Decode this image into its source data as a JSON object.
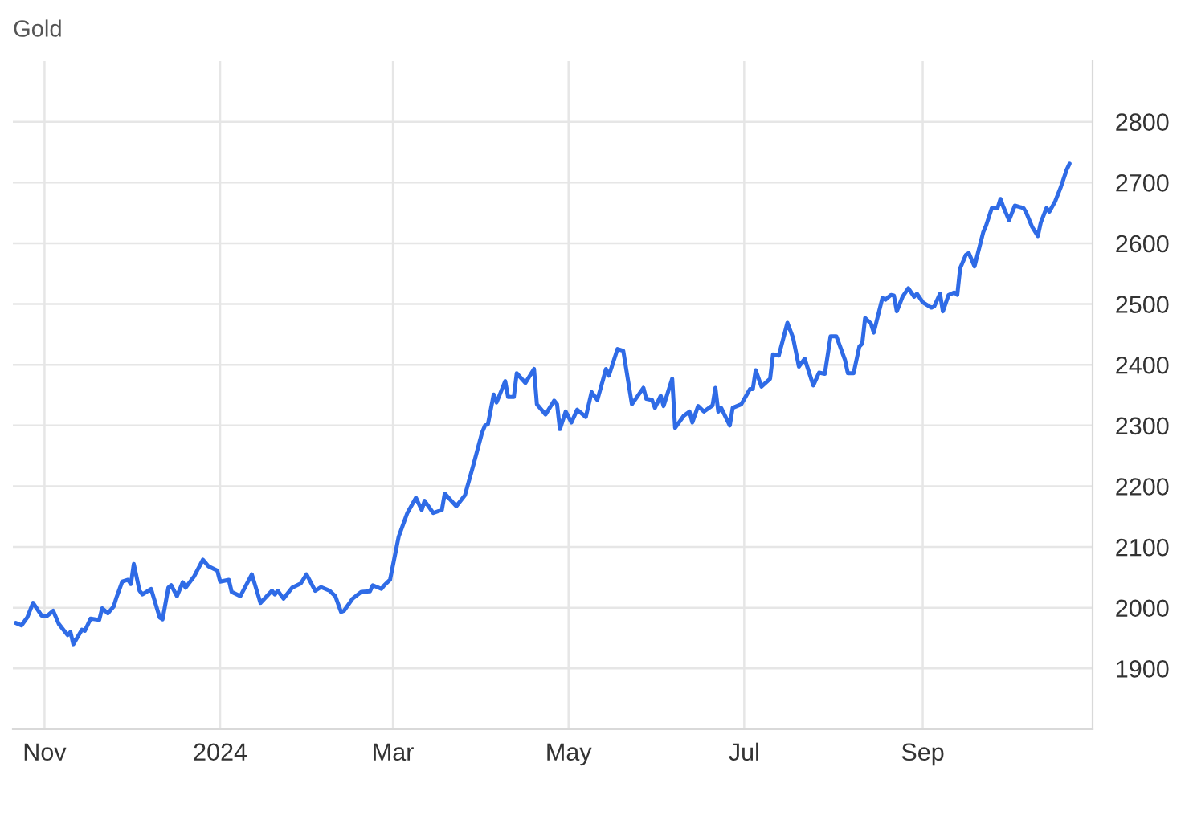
{
  "chart_data": {
    "type": "line",
    "title": "Gold",
    "x": [
      "2023-10-22",
      "2023-10-24",
      "2023-10-26",
      "2023-10-28",
      "2023-10-31",
      "2023-11-02",
      "2023-11-04",
      "2023-11-06",
      "2023-11-09",
      "2023-11-10",
      "2023-11-11",
      "2023-11-14",
      "2023-11-15",
      "2023-11-17",
      "2023-11-20",
      "2023-11-21",
      "2023-11-23",
      "2023-11-25",
      "2023-11-26",
      "2023-11-28",
      "2023-11-30",
      "2023-12-01",
      "2023-12-02",
      "2023-12-04",
      "2023-12-05",
      "2023-12-08",
      "2023-12-11",
      "2023-12-12",
      "2023-12-14",
      "2023-12-15",
      "2023-12-17",
      "2023-12-19",
      "2023-12-20",
      "2023-12-23",
      "2023-12-26",
      "2023-12-28",
      "2023-12-31",
      "2024-01-01",
      "2024-01-04",
      "2024-01-05",
      "2024-01-08",
      "2024-01-12",
      "2024-01-15",
      "2024-01-19",
      "2024-01-20",
      "2024-01-21",
      "2024-01-23",
      "2024-01-26",
      "2024-01-29",
      "2024-01-31",
      "2024-02-03",
      "2024-02-05",
      "2024-02-08",
      "2024-02-10",
      "2024-02-12",
      "2024-02-13",
      "2024-02-16",
      "2024-02-19",
      "2024-02-22",
      "2024-02-23",
      "2024-02-26",
      "2024-02-27",
      "2024-02-29",
      "2024-03-03",
      "2024-03-04",
      "2024-03-06",
      "2024-03-09",
      "2024-03-11",
      "2024-03-12",
      "2024-03-15",
      "2024-03-18",
      "2024-03-19",
      "2024-03-23",
      "2024-03-26",
      "2024-03-29",
      "2024-04-01",
      "2024-04-02",
      "2024-04-03",
      "2024-04-05",
      "2024-04-06",
      "2024-04-09",
      "2024-04-10",
      "2024-04-12",
      "2024-04-13",
      "2024-04-16",
      "2024-04-19",
      "2024-04-20",
      "2024-04-23",
      "2024-04-26",
      "2024-04-27",
      "2024-04-28",
      "2024-04-30",
      "2024-05-02",
      "2024-05-04",
      "2024-05-07",
      "2024-05-09",
      "2024-05-11",
      "2024-05-14",
      "2024-05-15",
      "2024-05-18",
      "2024-05-20",
      "2024-05-23",
      "2024-05-27",
      "2024-05-28",
      "2024-05-30",
      "2024-05-31",
      "2024-06-02",
      "2024-06-03",
      "2024-06-06",
      "2024-06-07",
      "2024-06-10",
      "2024-06-12",
      "2024-06-13",
      "2024-06-15",
      "2024-06-17",
      "2024-06-20",
      "2024-06-21",
      "2024-06-22",
      "2024-06-23",
      "2024-06-26",
      "2024-06-27",
      "2024-06-30",
      "2024-07-03",
      "2024-07-04",
      "2024-07-05",
      "2024-07-07",
      "2024-07-10",
      "2024-07-11",
      "2024-07-13",
      "2024-07-16",
      "2024-07-18",
      "2024-07-20",
      "2024-07-22",
      "2024-07-25",
      "2024-07-27",
      "2024-07-29",
      "2024-07-31",
      "2024-08-02",
      "2024-08-05",
      "2024-08-06",
      "2024-08-08",
      "2024-08-10",
      "2024-08-11",
      "2024-08-12",
      "2024-08-14",
      "2024-08-15",
      "2024-08-18",
      "2024-08-19",
      "2024-08-21",
      "2024-08-22",
      "2024-08-23",
      "2024-08-25",
      "2024-08-27",
      "2024-08-29",
      "2024-08-30",
      "2024-09-01",
      "2024-09-04",
      "2024-09-05",
      "2024-09-07",
      "2024-09-08",
      "2024-09-10",
      "2024-09-12",
      "2024-09-13",
      "2024-09-14",
      "2024-09-16",
      "2024-09-17",
      "2024-09-19",
      "2024-09-22",
      "2024-09-23",
      "2024-09-25",
      "2024-09-27",
      "2024-09-28",
      "2024-09-29",
      "2024-10-01",
      "2024-10-03",
      "2024-10-06",
      "2024-10-07",
      "2024-10-09",
      "2024-10-11",
      "2024-10-12",
      "2024-10-14",
      "2024-10-15",
      "2024-10-17",
      "2024-10-19",
      "2024-10-21",
      "2024-10-22"
    ],
    "series": [
      {
        "color": "#2f6be6",
        "values": [
          1975,
          1971,
          1984,
          2008,
          1987,
          1987,
          1995,
          1973,
          1955,
          1960,
          1940,
          1964,
          1962,
          1982,
          1980,
          1999,
          1991,
          2002,
          2017,
          2043,
          2046,
          2039,
          2072,
          2028,
          2022,
          2031,
          1984,
          1981,
          2033,
          2037,
          2019,
          2042,
          2033,
          2052,
          2079,
          2068,
          2061,
          2043,
          2046,
          2026,
          2019,
          2055,
          2008,
          2028,
          2022,
          2028,
          2015,
          2033,
          2040,
          2055,
          2028,
          2034,
          2028,
          2019,
          1993,
          1995,
          2015,
          2026,
          2027,
          2037,
          2031,
          2037,
          2046,
          2117,
          2130,
          2156,
          2181,
          2161,
          2176,
          2156,
          2161,
          2188,
          2167,
          2185,
          2236,
          2289,
          2300,
          2302,
          2351,
          2338,
          2373,
          2347,
          2347,
          2386,
          2370,
          2393,
          2335,
          2318,
          2341,
          2335,
          2294,
          2323,
          2305,
          2326,
          2314,
          2355,
          2342,
          2393,
          2382,
          2426,
          2423,
          2335,
          2362,
          2344,
          2342,
          2329,
          2349,
          2332,
          2377,
          2296,
          2316,
          2323,
          2305,
          2332,
          2323,
          2333,
          2362,
          2323,
          2329,
          2300,
          2329,
          2335,
          2360,
          2360,
          2391,
          2364,
          2377,
          2417,
          2415,
          2469,
          2444,
          2397,
          2410,
          2366,
          2387,
          2385,
          2447,
          2447,
          2408,
          2386,
          2386,
          2430,
          2435,
          2477,
          2468,
          2453,
          2510,
          2507,
          2515,
          2514,
          2488,
          2512,
          2526,
          2512,
          2517,
          2503,
          2494,
          2496,
          2517,
          2488,
          2515,
          2519,
          2515,
          2559,
          2581,
          2584,
          2562,
          2618,
          2629,
          2658,
          2658,
          2673,
          2660,
          2638,
          2662,
          2658,
          2650,
          2627,
          2612,
          2634,
          2658,
          2652,
          2669,
          2693,
          2721,
          2731
        ]
      }
    ],
    "xlim": [
      "2023-10-21",
      "2024-10-30"
    ],
    "xticks": [
      {
        "value": "2023-11-01",
        "label": "Nov"
      },
      {
        "value": "2024-01-01",
        "label": "2024"
      },
      {
        "value": "2024-03-01",
        "label": "Mar"
      },
      {
        "value": "2024-05-01",
        "label": "May"
      },
      {
        "value": "2024-07-01",
        "label": "Jul"
      },
      {
        "value": "2024-09-01",
        "label": "Sep"
      }
    ],
    "ylim": [
      1800,
      2900
    ],
    "yticks": [
      1900,
      2000,
      2100,
      2200,
      2300,
      2400,
      2500,
      2600,
      2700,
      2800
    ],
    "grid": true,
    "legend": false,
    "marker": "none",
    "line_style": "solid"
  }
}
